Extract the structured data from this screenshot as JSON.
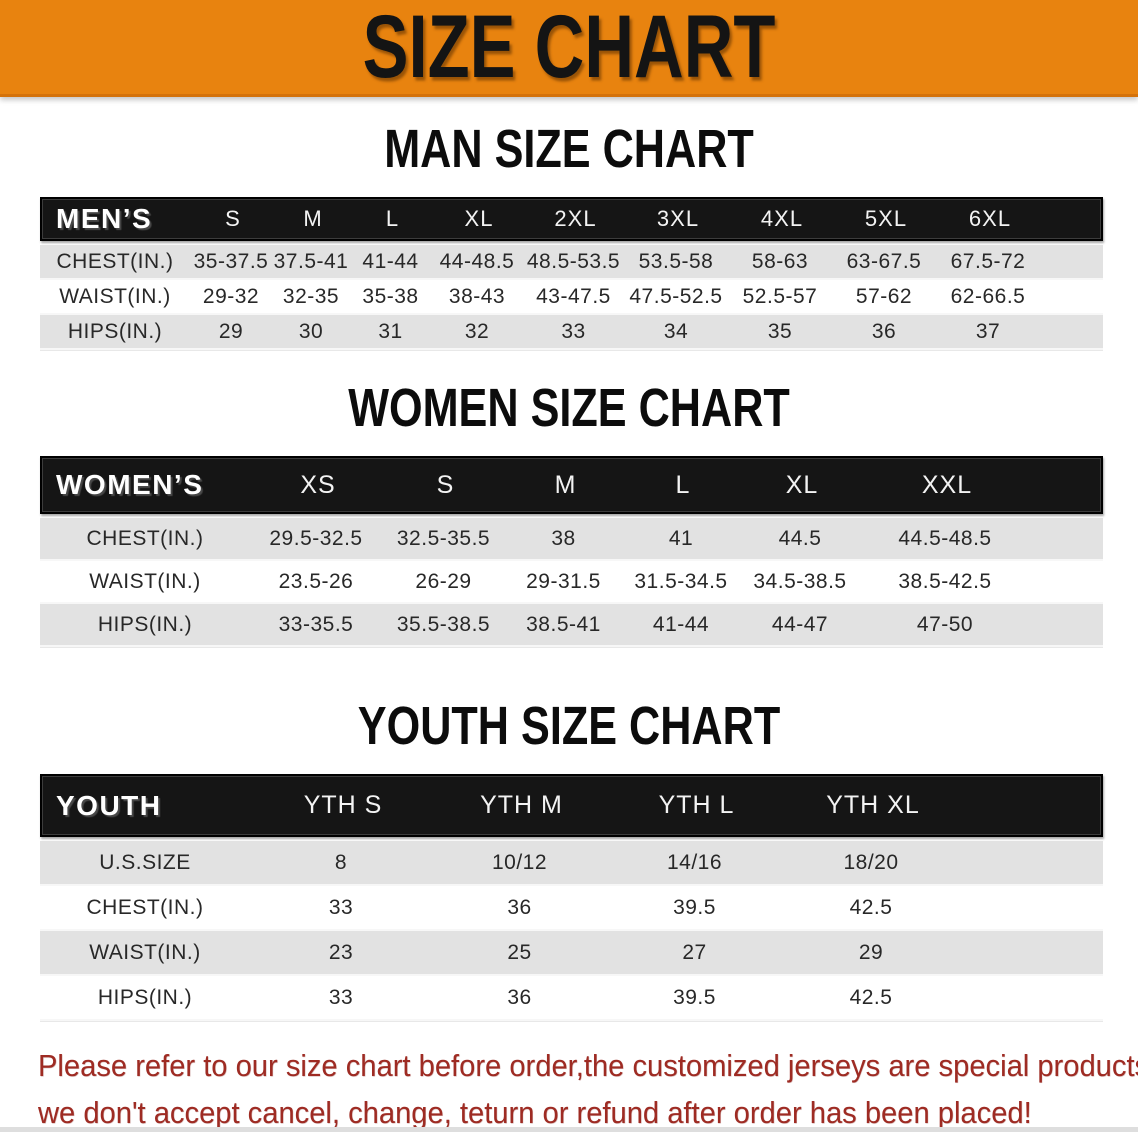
{
  "banner": {
    "title": "SIZE CHART",
    "bg_color": "#e8830f",
    "text_color": "#141414"
  },
  "sections": [
    {
      "heading": "MAN SIZE CHART",
      "table": {
        "header_label": "MEN’S",
        "columns": [
          "S",
          "M",
          "L",
          "XL",
          "2XL",
          "3XL",
          "4XL",
          "5XL",
          "6XL"
        ],
        "rows": [
          {
            "label": "CHEST(IN.)",
            "values": [
              "35-37.5",
              "37.5-41",
              "41-44",
              "44-48.5",
              "48.5-53.5",
              "53.5-58",
              "58-63",
              "63-67.5",
              "67.5-72"
            ]
          },
          {
            "label": "WAIST(IN.)",
            "values": [
              "29-32",
              "32-35",
              "35-38",
              "38-43",
              "43-47.5",
              "47.5-52.5",
              "52.5-57",
              "57-62",
              "62-66.5"
            ]
          },
          {
            "label": "HIPS(IN.)",
            "values": [
              "29",
              "30",
              "31",
              "32",
              "33",
              "34",
              "35",
              "36",
              "37"
            ]
          }
        ]
      }
    },
    {
      "heading": "WOMEN SIZE CHART",
      "table": {
        "header_label": "WOMEN’S",
        "columns": [
          "XS",
          "S",
          "M",
          "L",
          "XL",
          "XXL"
        ],
        "rows": [
          {
            "label": "CHEST(IN.)",
            "values": [
              "29.5-32.5",
              "32.5-35.5",
              "38",
              "41",
              "44.5",
              "44.5-48.5"
            ]
          },
          {
            "label": "WAIST(IN.)",
            "values": [
              "23.5-26",
              "26-29",
              "29-31.5",
              "31.5-34.5",
              "34.5-38.5",
              "38.5-42.5"
            ]
          },
          {
            "label": "HIPS(IN.)",
            "values": [
              "33-35.5",
              "35.5-38.5",
              "38.5-41",
              "41-44",
              "44-47",
              "47-50"
            ]
          }
        ]
      }
    },
    {
      "heading": "YOUTH SIZE CHART",
      "table": {
        "header_label": "YOUTH",
        "columns": [
          "YTH S",
          "YTH M",
          "YTH L",
          "YTH XL"
        ],
        "rows": [
          {
            "label": "U.S.SIZE",
            "values": [
              "8",
              "10/12",
              "14/16",
              "18/20"
            ]
          },
          {
            "label": "CHEST(IN.)",
            "values": [
              "33",
              "36",
              "39.5",
              "42.5"
            ]
          },
          {
            "label": "WAIST(IN.)",
            "values": [
              "23",
              "25",
              "27",
              "29"
            ]
          },
          {
            "label": "HIPS(IN.)",
            "values": [
              "33",
              "36",
              "39.5",
              "42.5"
            ]
          }
        ]
      }
    }
  ],
  "disclaimer": {
    "line1": "Please refer to our size chart before order,the customized jerseys are special products,",
    "line2": "we don't accept cancel, change, teturn or refund after order has been placed!",
    "color": "#9e2b23"
  },
  "colors": {
    "banner_orange": "#e8830f",
    "table_header_black": "#151515",
    "row_gray": "#e2e2e2",
    "disclaimer_red": "#9e2b23"
  }
}
